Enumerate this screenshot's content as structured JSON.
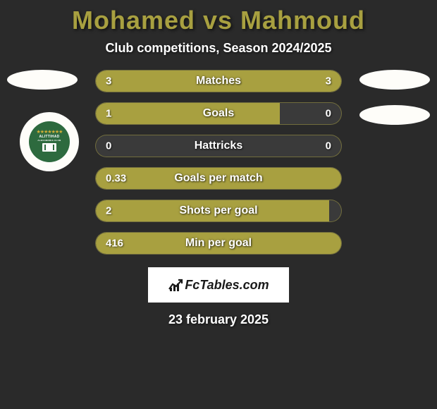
{
  "title": "Mohamed vs Mahmoud",
  "subtitle": "Club competitions, Season 2024/2025",
  "date": "23 february 2025",
  "footer_brand": "FcTables.com",
  "colors": {
    "accent": "#a8a040",
    "background": "#2a2a2a",
    "bar_bg": "#3a3a3a",
    "text": "#ffffff",
    "oval": "#fefdf9",
    "badge_inner": "#2d6a3e",
    "footer_bg": "#ffffff",
    "footer_text": "#1a1a1a"
  },
  "club_badge": {
    "name": "ALITTIHAD",
    "subtext": "ALEXANDRIA CLUB"
  },
  "stats": [
    {
      "label": "Matches",
      "left_val": "3",
      "right_val": "3",
      "left_pct": 50,
      "right_pct": 50
    },
    {
      "label": "Goals",
      "left_val": "1",
      "right_val": "0",
      "left_pct": 75,
      "right_pct": 0
    },
    {
      "label": "Hattricks",
      "left_val": "0",
      "right_val": "0",
      "left_pct": 0,
      "right_pct": 0
    },
    {
      "label": "Goals per match",
      "left_val": "0.33",
      "right_val": "",
      "left_pct": 100,
      "right_pct": 0
    },
    {
      "label": "Shots per goal",
      "left_val": "2",
      "right_val": "",
      "left_pct": 95,
      "right_pct": 0
    },
    {
      "label": "Min per goal",
      "left_val": "416",
      "right_val": "",
      "left_pct": 100,
      "right_pct": 0
    }
  ]
}
